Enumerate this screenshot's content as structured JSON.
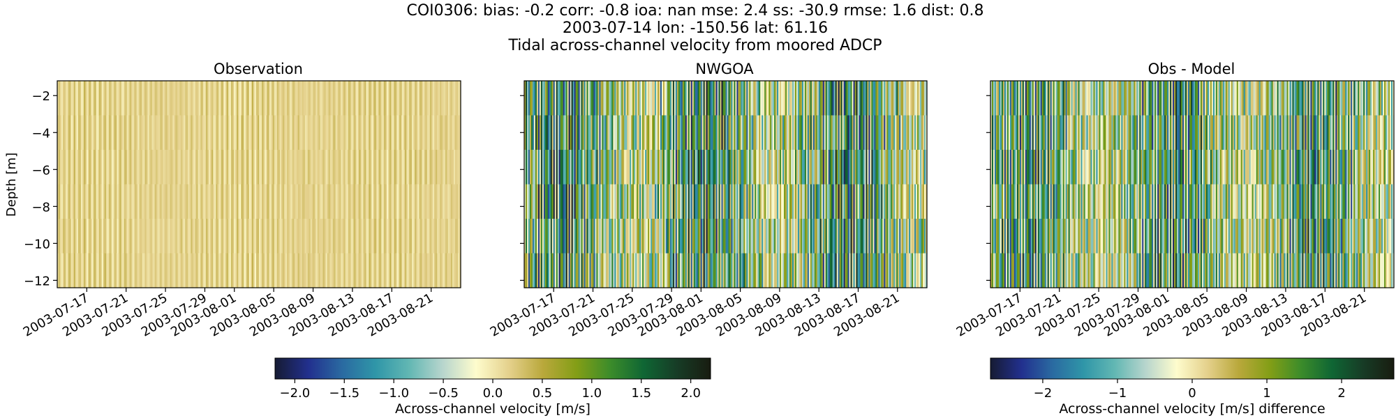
{
  "figure": {
    "title_lines": [
      "COI0306: bias: -0.2  corr: -0.8  ioa: nan  mse: 2.4  ss: -30.9  rmse: 1.6  dist: 0.8",
      "2003-07-14 lon: -150.56 lat: 61.16",
      "Tidal across-channel velocity from moored ADCP"
    ]
  },
  "chart_data": [
    {
      "type": "heatmap",
      "title": "Observation",
      "ylabel": "Depth [m]",
      "ylim": [
        -12.4,
        -1.2
      ],
      "yticks": [
        -12,
        -10,
        -8,
        -6,
        -4,
        -2
      ],
      "ytick_labels": [
        "−12",
        "−10",
        "−8",
        "−6",
        "−4",
        "−2"
      ],
      "x_start": "2003-07-14",
      "x_end": "2003-08-24",
      "xticks": [
        "2003-07-17",
        "2003-07-21",
        "2003-07-25",
        "2003-07-29",
        "2003-08-01",
        "2003-08-05",
        "2003-08-09",
        "2003-08-13",
        "2003-08-17",
        "2003-08-21"
      ],
      "colormap": "delta",
      "value_range": [
        -2.2,
        2.2
      ],
      "typical_amplitude": 0.5
    },
    {
      "type": "heatmap",
      "title": "NWGOA",
      "ylim": [
        -12.4,
        -1.2
      ],
      "x_start": "2003-07-14",
      "x_end": "2003-08-24",
      "xticks": [
        "2003-07-17",
        "2003-07-21",
        "2003-07-25",
        "2003-07-29",
        "2003-08-01",
        "2003-08-05",
        "2003-08-09",
        "2003-08-13",
        "2003-08-17",
        "2003-08-21"
      ],
      "colormap": "delta",
      "value_range": [
        -2.2,
        2.2
      ],
      "typical_amplitude": 1.9
    },
    {
      "type": "heatmap",
      "title": "Obs - Model",
      "ylim": [
        -12.4,
        -1.2
      ],
      "x_start": "2003-07-14",
      "x_end": "2003-08-24",
      "xticks": [
        "2003-07-17",
        "2003-07-21",
        "2003-07-25",
        "2003-07-29",
        "2003-08-01",
        "2003-08-05",
        "2003-08-09",
        "2003-08-13",
        "2003-08-17",
        "2003-08-21"
      ],
      "colormap": "delta",
      "value_range": [
        -2.7,
        2.7
      ],
      "typical_amplitude": 2.2
    }
  ],
  "colorbars": [
    {
      "label": "Across-channel velocity [m/s]",
      "range": [
        -2.2,
        2.2
      ],
      "ticks": [
        -2.0,
        -1.5,
        -1.0,
        -0.5,
        0.0,
        0.5,
        1.0,
        1.5,
        2.0
      ],
      "tick_labels": [
        "−2.0",
        "−1.5",
        "−1.0",
        "−0.5",
        "0.0",
        "0.5",
        "1.0",
        "1.5",
        "2.0"
      ]
    },
    {
      "label": "Across-channel velocity [m/s] difference",
      "range": [
        -2.7,
        2.7
      ],
      "ticks": [
        -2,
        -1,
        0,
        1,
        2
      ],
      "tick_labels": [
        "−2",
        "−1",
        "0",
        "1",
        "2"
      ]
    }
  ],
  "colormap_stops": [
    "#161b33",
    "#22308e",
    "#2a6aa1",
    "#2f96a8",
    "#62b7b3",
    "#b7d5cd",
    "#fefccd",
    "#e4d08b",
    "#b9a83b",
    "#839e16",
    "#3c8c2a",
    "#0f6634",
    "#173c26",
    "#181c10"
  ]
}
